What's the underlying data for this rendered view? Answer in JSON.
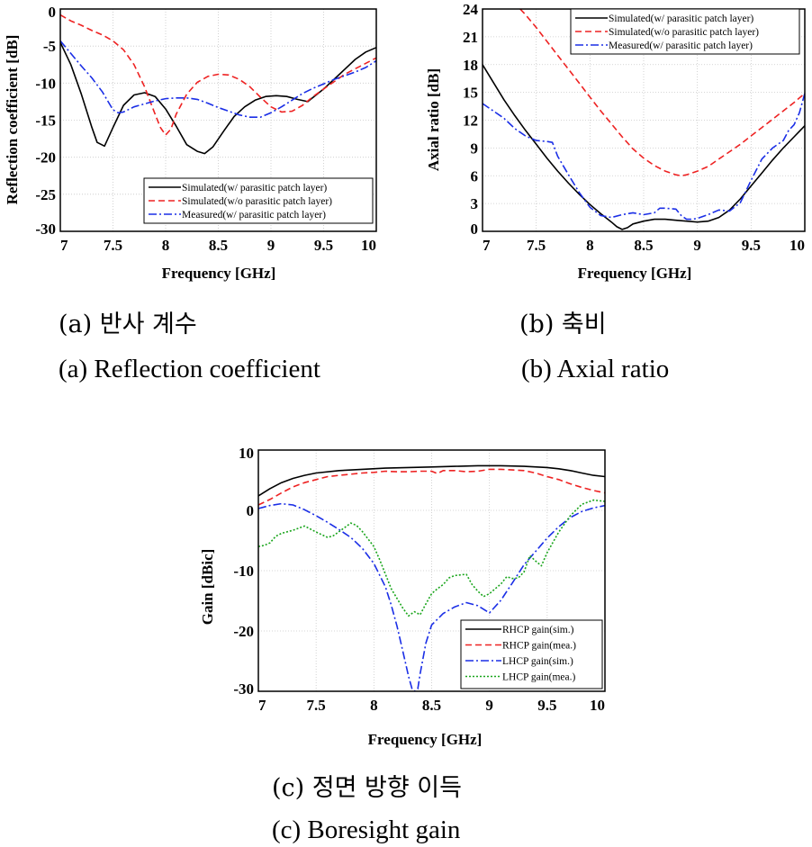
{
  "colors": {
    "black": "#000000",
    "red": "#ee2222",
    "blue": "#1a2ee6",
    "green": "#19a51b"
  },
  "captions": {
    "a_ko": "(a) 반사 계수",
    "a_en": "(a) Reflection coefficient",
    "b_ko": "(b) 축비",
    "b_en": "(b) Axial ratio",
    "c_ko": "(c) 정면 방향 이득",
    "c_en": "(c) Boresight gain"
  },
  "chart_data": [
    {
      "id": "a",
      "type": "line",
      "xlabel": "Frequency [GHz]",
      "ylabel": "Reflection coefficient [dB]",
      "xlim": [
        7,
        10
      ],
      "ylim": [
        -30,
        0
      ],
      "xticks": [
        7,
        7.5,
        8,
        8.5,
        9,
        9.5,
        10
      ],
      "xtick_labels": [
        "7",
        "7.5",
        "8",
        "8.5",
        "9",
        "9.5",
        "10"
      ],
      "yticks": [
        0,
        -5,
        -10,
        -15,
        -20,
        -25,
        -30
      ],
      "ytick_labels": [
        "0",
        "-5",
        "-10",
        "-15",
        "-20",
        "-25",
        "-30"
      ],
      "grid": true,
      "legend_position": "lower-right",
      "series": [
        {
          "name": "Simulated(w/ parasitic patch layer)",
          "color": "#000000",
          "dash": "solid",
          "x": [
            7,
            7.1,
            7.2,
            7.3,
            7.35,
            7.42,
            7.5,
            7.6,
            7.7,
            7.8,
            7.9,
            8.0,
            8.1,
            8.2,
            8.3,
            8.37,
            8.45,
            8.55,
            8.65,
            8.75,
            8.85,
            8.95,
            9.05,
            9.15,
            9.25,
            9.35,
            9.5,
            9.65,
            9.8,
            9.9,
            10
          ],
          "y": [
            -4.5,
            -7.5,
            -11.5,
            -16,
            -18,
            -18.5,
            -16,
            -13,
            -11.6,
            -11.3,
            -11.8,
            -13.5,
            -15.8,
            -18.3,
            -19.2,
            -19.5,
            -18.6,
            -16.5,
            -14.5,
            -13.2,
            -12.3,
            -11.8,
            -11.7,
            -11.8,
            -12.2,
            -12.5,
            -10.8,
            -8.8,
            -6.8,
            -5.8,
            -5.2
          ]
        },
        {
          "name": "Simulated(w/o parasitic patch layer)",
          "color": "#ee2222",
          "dash": "dashed",
          "x": [
            7,
            7.1,
            7.2,
            7.3,
            7.4,
            7.5,
            7.6,
            7.7,
            7.8,
            7.9,
            7.95,
            8.0,
            8.05,
            8.1,
            8.2,
            8.3,
            8.4,
            8.5,
            8.6,
            8.7,
            8.8,
            8.9,
            9.0,
            9.1,
            9.2,
            9.3,
            9.4,
            9.5,
            9.7,
            9.85,
            10
          ],
          "y": [
            -0.8,
            -1.6,
            -2.2,
            -2.9,
            -3.5,
            -4.3,
            -5.5,
            -7.5,
            -10.5,
            -14.2,
            -16.0,
            -17.0,
            -16.2,
            -14.2,
            -11.5,
            -9.9,
            -9.1,
            -8.8,
            -8.9,
            -9.5,
            -10.5,
            -11.9,
            -13.2,
            -13.9,
            -13.8,
            -13.0,
            -11.8,
            -10.8,
            -8.8,
            -7.7,
            -6.6
          ]
        },
        {
          "name": "Measured(w/ parasitic patch layer)",
          "color": "#1a2ee6",
          "dash": "dashdot",
          "x": [
            7,
            7.1,
            7.2,
            7.3,
            7.4,
            7.5,
            7.55,
            7.6,
            7.7,
            7.8,
            7.9,
            8.0,
            8.1,
            8.2,
            8.3,
            8.4,
            8.5,
            8.6,
            8.7,
            8.8,
            8.9,
            9.0,
            9.1,
            9.2,
            9.3,
            9.4,
            9.5,
            9.6,
            9.7,
            9.8,
            9.9,
            10
          ],
          "y": [
            -4.3,
            -6.0,
            -7.7,
            -9.3,
            -11.2,
            -13.6,
            -14.0,
            -13.9,
            -13.2,
            -12.8,
            -12.4,
            -12.1,
            -12.0,
            -12.0,
            -12.2,
            -12.7,
            -13.3,
            -13.8,
            -14.3,
            -14.6,
            -14.6,
            -14.0,
            -13.2,
            -12.3,
            -11.4,
            -10.7,
            -10.1,
            -9.5,
            -9.0,
            -8.5,
            -7.9,
            -7.0
          ]
        }
      ]
    },
    {
      "id": "b",
      "type": "line",
      "xlabel": "Frequency [GHz]",
      "ylabel": "Axial ratio [dB]",
      "xlim": [
        7,
        10
      ],
      "ylim": [
        0,
        24
      ],
      "xticks": [
        7,
        7.5,
        8,
        8.5,
        9,
        9.5,
        10
      ],
      "xtick_labels": [
        "7",
        "7.5",
        "8",
        "8.5",
        "9",
        "9.5",
        "10"
      ],
      "yticks": [
        0,
        3,
        6,
        9,
        12,
        15,
        18,
        21,
        24
      ],
      "ytick_labels": [
        "0",
        "3",
        "6",
        "9",
        "12",
        "15",
        "18",
        "21",
        "24"
      ],
      "grid": true,
      "legend_position": "top-right",
      "series": [
        {
          "name": "Simulated(w/ parasitic patch layer)",
          "color": "#000000",
          "dash": "solid",
          "x": [
            7,
            7.1,
            7.2,
            7.3,
            7.4,
            7.5,
            7.6,
            7.7,
            7.8,
            7.9,
            8.0,
            8.1,
            8.2,
            8.25,
            8.3,
            8.35,
            8.4,
            8.5,
            8.6,
            8.7,
            8.8,
            8.9,
            9.0,
            9.1,
            9.2,
            9.3,
            9.4,
            9.5,
            9.6,
            9.7,
            9.8,
            9.9,
            10
          ],
          "y": [
            18,
            16.1,
            14.2,
            12.5,
            10.9,
            9.4,
            7.9,
            6.5,
            5.2,
            4.0,
            2.9,
            1.9,
            1.0,
            0.5,
            0.2,
            0.4,
            0.8,
            1.1,
            1.3,
            1.3,
            1.2,
            1.1,
            1.0,
            1.1,
            1.5,
            2.3,
            3.5,
            4.9,
            6.3,
            7.7,
            9.0,
            10.2,
            11.4
          ]
        },
        {
          "name": "Simulated(w/o parasitic patch layer)",
          "color": "#ee2222",
          "dash": "dashed",
          "x": [
            7.35,
            7.4,
            7.5,
            7.6,
            7.7,
            7.8,
            7.9,
            8.0,
            8.1,
            8.2,
            8.3,
            8.4,
            8.5,
            8.6,
            8.7,
            8.8,
            8.85,
            8.9,
            9.0,
            9.1,
            9.2,
            9.3,
            9.4,
            9.5,
            9.6,
            9.7,
            9.8,
            9.9,
            10
          ],
          "y": [
            24,
            23.4,
            22.0,
            20.5,
            19.0,
            17.5,
            16.0,
            14.5,
            13.0,
            11.6,
            10.2,
            8.9,
            7.9,
            7.1,
            6.5,
            6.1,
            6.0,
            6.1,
            6.5,
            7.0,
            7.8,
            8.6,
            9.4,
            10.3,
            11.2,
            12.1,
            13.0,
            13.9,
            14.9
          ]
        },
        {
          "name": "Measured(w/ parasitic patch layer)",
          "color": "#1a2ee6",
          "dash": "dashdot",
          "x": [
            7,
            7.1,
            7.2,
            7.3,
            7.4,
            7.5,
            7.6,
            7.65,
            7.7,
            7.8,
            7.9,
            8.0,
            8.1,
            8.2,
            8.3,
            8.4,
            8.5,
            8.6,
            8.65,
            8.7,
            8.8,
            8.85,
            8.9,
            8.95,
            9.0,
            9.1,
            9.2,
            9.3,
            9.4,
            9.5,
            9.6,
            9.7,
            9.8,
            9.85,
            9.9,
            9.95,
            10
          ],
          "y": [
            13.8,
            13.0,
            12.2,
            11.1,
            10.3,
            9.8,
            9.7,
            9.6,
            8.1,
            6.1,
            4.2,
            2.6,
            1.7,
            1.5,
            1.8,
            2.0,
            1.8,
            2.0,
            2.5,
            2.5,
            2.4,
            1.7,
            1.3,
            1.3,
            1.4,
            1.8,
            2.3,
            2.2,
            3.1,
            5.5,
            7.8,
            9.0,
            9.8,
            10.9,
            11.5,
            12.8,
            14.9
          ]
        }
      ]
    },
    {
      "id": "c",
      "type": "line",
      "xlabel": "Frequency [GHz]",
      "ylabel": "Gain [dBic]",
      "xlim": [
        7,
        10
      ],
      "ylim": [
        -30,
        10
      ],
      "xticks": [
        7,
        7.5,
        8,
        8.5,
        9,
        9.5,
        10
      ],
      "xtick_labels": [
        "7",
        "7.5",
        "8",
        "8.5",
        "9",
        "9.5",
        "10"
      ],
      "yticks": [
        10,
        0,
        -10,
        -20,
        -30
      ],
      "ytick_labels": [
        "10",
        "0",
        "-10",
        "-20",
        "-30"
      ],
      "grid": true,
      "legend_position": "lower-right",
      "series": [
        {
          "name": "RHCP gain(sim.)",
          "color": "#000000",
          "dash": "solid",
          "x": [
            7,
            7.1,
            7.2,
            7.3,
            7.4,
            7.5,
            7.7,
            7.9,
            8.1,
            8.3,
            8.5,
            8.7,
            8.9,
            9.1,
            9.3,
            9.5,
            9.6,
            9.7,
            9.8,
            9.9,
            10
          ],
          "y": [
            2.4,
            3.6,
            4.6,
            5.3,
            5.8,
            6.2,
            6.6,
            6.8,
            7.0,
            7.1,
            7.2,
            7.3,
            7.4,
            7.4,
            7.3,
            7.1,
            6.9,
            6.6,
            6.2,
            5.8,
            5.6
          ]
        },
        {
          "name": "RHCP gain(mea.)",
          "color": "#ee2222",
          "dash": "dashed",
          "x": [
            7,
            7.1,
            7.2,
            7.3,
            7.4,
            7.5,
            7.6,
            7.7,
            7.8,
            7.9,
            8.0,
            8.1,
            8.2,
            8.3,
            8.4,
            8.5,
            8.55,
            8.6,
            8.7,
            8.8,
            8.9,
            9.0,
            9.1,
            9.2,
            9.3,
            9.4,
            9.5,
            9.6,
            9.7,
            9.8,
            9.9,
            10
          ],
          "y": [
            0.9,
            1.8,
            2.9,
            3.9,
            4.6,
            5.1,
            5.6,
            5.8,
            6.0,
            6.2,
            6.3,
            6.5,
            6.4,
            6.4,
            6.5,
            6.5,
            6.1,
            6.6,
            6.6,
            6.4,
            6.5,
            6.8,
            6.8,
            6.7,
            6.6,
            6.2,
            5.6,
            5.1,
            4.4,
            3.8,
            3.3,
            2.9
          ]
        },
        {
          "name": "LHCP gain(sim.)",
          "color": "#1a2ee6",
          "dash": "dashdot",
          "x": [
            7,
            7.1,
            7.2,
            7.3,
            7.4,
            7.5,
            7.6,
            7.7,
            7.8,
            7.9,
            8.0,
            8.1,
            8.15,
            8.2,
            8.25,
            8.3,
            8.33,
            8.35,
            8.38,
            8.4,
            8.45,
            8.5,
            8.6,
            8.7,
            8.8,
            8.9,
            9.0,
            9.1,
            9.2,
            9.3,
            9.4,
            9.5,
            9.6,
            9.7,
            9.8,
            9.9,
            10
          ],
          "y": [
            0.3,
            0.8,
            1.1,
            0.9,
            0.1,
            -0.9,
            -2.0,
            -3.2,
            -4.5,
            -6.3,
            -8.8,
            -12.7,
            -15.7,
            -19.2,
            -23.3,
            -27.5,
            -29.6,
            -30,
            -29.6,
            -27.1,
            -22.0,
            -19.0,
            -17.1,
            -16.0,
            -15.3,
            -15.8,
            -17.0,
            -14.9,
            -12.0,
            -9.0,
            -6.8,
            -4.6,
            -2.7,
            -1.2,
            -0.2,
            0.4,
            0.8
          ]
        },
        {
          "name": "LHCP gain(mea.)",
          "color": "#19a51b",
          "dash": "dotted",
          "x": [
            7,
            7.05,
            7.1,
            7.15,
            7.2,
            7.3,
            7.4,
            7.5,
            7.6,
            7.65,
            7.7,
            7.75,
            7.8,
            7.85,
            7.9,
            8.0,
            8.05,
            8.1,
            8.15,
            8.2,
            8.25,
            8.3,
            8.35,
            8.4,
            8.45,
            8.5,
            8.55,
            8.6,
            8.65,
            8.7,
            8.75,
            8.8,
            8.85,
            8.9,
            8.95,
            9.0,
            9.05,
            9.1,
            9.15,
            9.2,
            9.25,
            9.3,
            9.35,
            9.4,
            9.45,
            9.5,
            9.6,
            9.7,
            9.8,
            9.9,
            10
          ],
          "y": [
            -6.0,
            -5.8,
            -5.4,
            -4.3,
            -3.8,
            -3.3,
            -2.6,
            -3.6,
            -4.5,
            -4.2,
            -3.5,
            -2.8,
            -2.1,
            -2.5,
            -3.5,
            -6.0,
            -8.2,
            -10.6,
            -13.0,
            -14.6,
            -16.2,
            -17.5,
            -16.8,
            -17.3,
            -15.5,
            -13.8,
            -13.0,
            -12.3,
            -11.2,
            -10.8,
            -10.7,
            -10.6,
            -12.3,
            -13.4,
            -14.3,
            -13.8,
            -13.0,
            -12.2,
            -11.0,
            -11.3,
            -11.2,
            -10.2,
            -7.5,
            -8.4,
            -9.2,
            -7.0,
            -3.6,
            -0.9,
            1.0,
            1.7,
            1.5
          ]
        }
      ]
    }
  ]
}
